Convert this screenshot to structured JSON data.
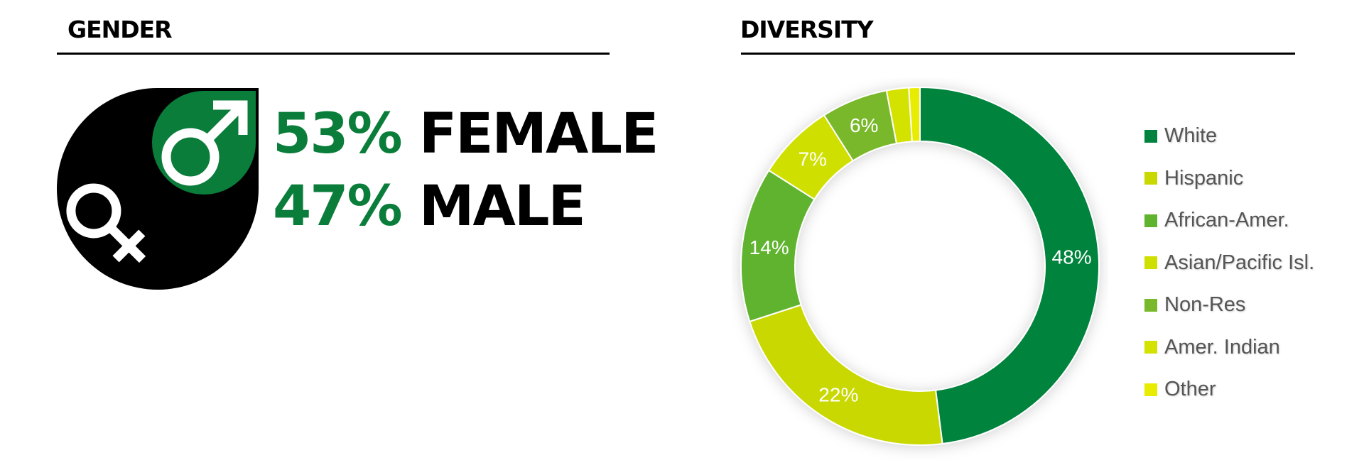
{
  "gender": {
    "title": "GENDER",
    "female": {
      "pct": "53%",
      "label": "FEMALE"
    },
    "male": {
      "pct": "47%",
      "label": "MALE"
    }
  },
  "icons": {
    "female": "female-symbol-icon",
    "male": "male-symbol-icon"
  },
  "colors": {
    "brand_green": "#0a7d3a",
    "text": "#000000",
    "white": "#00833e",
    "hispanic": "#c8d800",
    "african_amer": "#5fb32d",
    "asian_pacific": "#cfe000",
    "non_res": "#79b82a",
    "amer_indian": "#d4e200",
    "other": "#e8ec00"
  },
  "chart_data": {
    "type": "pie",
    "title": "DIVERSITY",
    "categories": [
      "White",
      "Hispanic",
      "African-Amer.",
      "Asian/Pacific Isl.",
      "Non-Res",
      "Amer. Indian",
      "Other"
    ],
    "values": [
      48,
      22,
      14,
      7,
      6,
      2,
      1
    ],
    "data_labels": [
      "48%",
      "22%",
      "14%",
      "7%",
      "6%",
      "",
      ""
    ],
    "colors": [
      "#00833e",
      "#c8d800",
      "#5fb32d",
      "#cfe000",
      "#79b82a",
      "#d4e200",
      "#e8ec00"
    ],
    "legend_position": "right"
  }
}
